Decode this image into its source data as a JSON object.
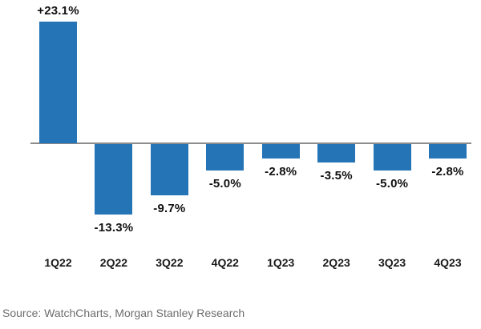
{
  "chart_data": {
    "type": "bar",
    "title": "",
    "xlabel": "",
    "ylabel": "",
    "categories": [
      "1Q22",
      "2Q22",
      "3Q22",
      "4Q22",
      "1Q23",
      "2Q23",
      "3Q23",
      "4Q23"
    ],
    "values": [
      23.1,
      -13.3,
      -9.7,
      -5.0,
      -2.8,
      -3.5,
      -5.0,
      -2.8
    ],
    "value_labels": [
      "+23.1%",
      "-13.3%",
      "-9.7%",
      "-5.0%",
      "-2.8%",
      "-3.5%",
      "-5.0%",
      "-2.8%"
    ],
    "unit": "%",
    "bar_color": "#2574b6",
    "axis_color": "#8c8c8c",
    "label_color": "#111111",
    "baseline_value": 0,
    "ylim": [
      -17,
      24
    ],
    "grid": false,
    "legend_position": "none"
  },
  "footer": {
    "source": "Source: WatchCharts, Morgan Stanley Research",
    "source_color": "#6d6d6d"
  }
}
